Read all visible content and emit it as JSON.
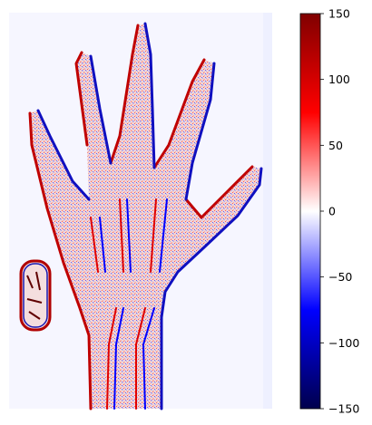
{
  "chart_data": {
    "type": "heatmap",
    "title": "",
    "xlabel": "",
    "ylabel": "",
    "image_subject": "edge-filtered X-ray of a hand and wrist with a small marker block on the left",
    "colormap": "seismic",
    "colormap_stops": [
      "#00004c",
      "#0000ff",
      "#ffffff",
      "#ff0000",
      "#800000"
    ],
    "colorbar": {
      "vmin": -150,
      "vmax": 150,
      "ticks": [
        150,
        100,
        50,
        0,
        -50,
        -100,
        -150
      ],
      "tick_labels": [
        "150",
        "100",
        "50",
        "0",
        "−50",
        "−100",
        "−150"
      ]
    },
    "axes_visible": false,
    "grid": false
  }
}
